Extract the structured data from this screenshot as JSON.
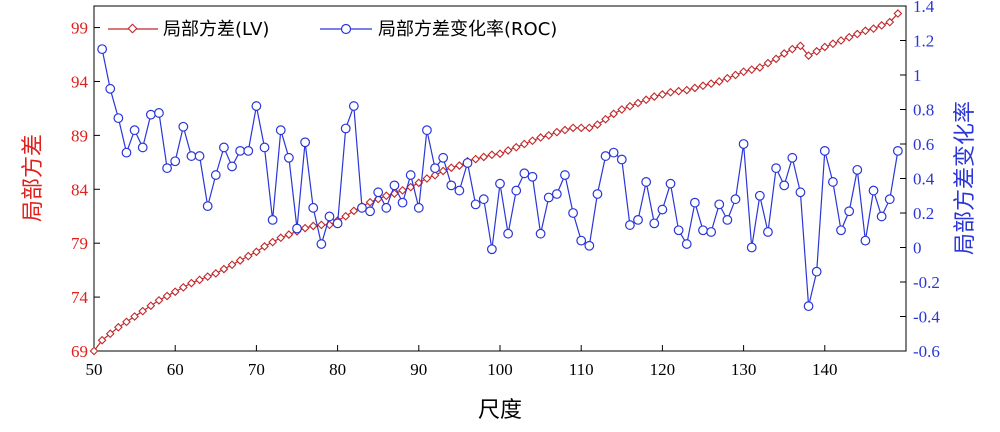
{
  "chart_data": {
    "type": "line",
    "xlabel": "尺度",
    "ylabel_left": "局部方差",
    "ylabel_right": "局部方差变化率",
    "xlim": [
      50,
      150
    ],
    "x_ticks": [
      50,
      60,
      70,
      80,
      90,
      100,
      110,
      120,
      130,
      140
    ],
    "y_left_lim": [
      69,
      101
    ],
    "y_left_ticks": [
      69,
      74,
      79,
      84,
      89,
      94,
      99
    ],
    "y_right_lim": [
      -0.6,
      1.4
    ],
    "y_right_ticks": [
      -0.6,
      -0.4,
      -0.2,
      0,
      0.2,
      0.4,
      0.6,
      0.8,
      1,
      1.2,
      1.4
    ],
    "legend_position": "top-left",
    "colors": {
      "lv": "#c0282a",
      "roc": "#2a36d8",
      "left_axis": "#e0201c",
      "right_axis": "#2a36d8"
    },
    "x": [
      50,
      51,
      52,
      53,
      54,
      55,
      56,
      57,
      58,
      59,
      60,
      61,
      62,
      63,
      64,
      65,
      66,
      67,
      68,
      69,
      70,
      71,
      72,
      73,
      74,
      75,
      76,
      77,
      78,
      79,
      80,
      81,
      82,
      83,
      84,
      85,
      86,
      87,
      88,
      89,
      90,
      91,
      92,
      93,
      94,
      95,
      96,
      97,
      98,
      99,
      100,
      101,
      102,
      103,
      104,
      105,
      106,
      107,
      108,
      109,
      110,
      111,
      112,
      113,
      114,
      115,
      116,
      117,
      118,
      119,
      120,
      121,
      122,
      123,
      124,
      125,
      126,
      127,
      128,
      129,
      130,
      131,
      132,
      133,
      134,
      135,
      136,
      137,
      138,
      139,
      140,
      141,
      142,
      143,
      144,
      145,
      146,
      147,
      148,
      149
    ],
    "series": [
      {
        "name": "局部方差(LV)",
        "axis": "left",
        "marker": "diamond",
        "values": [
          69.0,
          70.0,
          70.6,
          71.2,
          71.7,
          72.2,
          72.7,
          73.2,
          73.7,
          74.1,
          74.5,
          74.9,
          75.3,
          75.6,
          75.9,
          76.2,
          76.6,
          77.0,
          77.4,
          77.8,
          78.2,
          78.7,
          79.1,
          79.5,
          79.8,
          80.1,
          80.4,
          80.6,
          80.7,
          80.7,
          81.1,
          81.5,
          82.0,
          82.4,
          82.8,
          83.1,
          83.4,
          83.6,
          83.9,
          84.2,
          84.6,
          85.0,
          85.3,
          85.7,
          86.0,
          86.2,
          86.6,
          86.8,
          87.0,
          87.2,
          87.3,
          87.6,
          87.9,
          88.2,
          88.5,
          88.8,
          89.0,
          89.3,
          89.5,
          89.7,
          89.7,
          89.7,
          90.0,
          90.5,
          91.0,
          91.4,
          91.7,
          92.0,
          92.3,
          92.6,
          92.8,
          93.0,
          93.1,
          93.2,
          93.4,
          93.6,
          93.8,
          94.0,
          94.3,
          94.6,
          94.9,
          95.1,
          95.3,
          95.7,
          96.1,
          96.6,
          97.0,
          97.3,
          96.4,
          96.8,
          97.2,
          97.5,
          97.8,
          98.1,
          98.4,
          98.7,
          98.9,
          99.2,
          99.5,
          100.3
        ]
      },
      {
        "name": "局部方差变化率(ROC)",
        "axis": "right",
        "marker": "circle",
        "values": [
          null,
          1.15,
          0.92,
          0.75,
          0.55,
          0.68,
          0.58,
          0.77,
          0.78,
          0.46,
          0.5,
          0.7,
          0.53,
          0.53,
          0.24,
          0.42,
          0.58,
          0.47,
          0.56,
          0.56,
          0.82,
          0.58,
          0.16,
          0.68,
          0.52,
          0.11,
          0.61,
          0.23,
          0.02,
          0.18,
          0.14,
          0.69,
          0.82,
          0.23,
          0.21,
          0.32,
          0.23,
          0.36,
          0.26,
          0.42,
          0.23,
          0.68,
          0.46,
          0.52,
          0.36,
          0.33,
          0.49,
          0.25,
          0.28,
          -0.01,
          0.37,
          0.08,
          0.33,
          0.43,
          0.41,
          0.08,
          0.29,
          0.31,
          0.42,
          0.2,
          0.04,
          0.01,
          0.31,
          0.53,
          0.55,
          0.51,
          0.13,
          0.16,
          0.38,
          0.14,
          0.22,
          0.37,
          0.1,
          0.02,
          0.26,
          0.1,
          0.09,
          0.25,
          0.16,
          0.28,
          0.6,
          0.0,
          0.3,
          0.09,
          0.46,
          0.36,
          0.52,
          0.32,
          -0.34,
          -0.14,
          0.56,
          0.38,
          0.1,
          0.21,
          0.45,
          0.04,
          0.33,
          0.18,
          0.28,
          0.56
        ]
      }
    ]
  }
}
